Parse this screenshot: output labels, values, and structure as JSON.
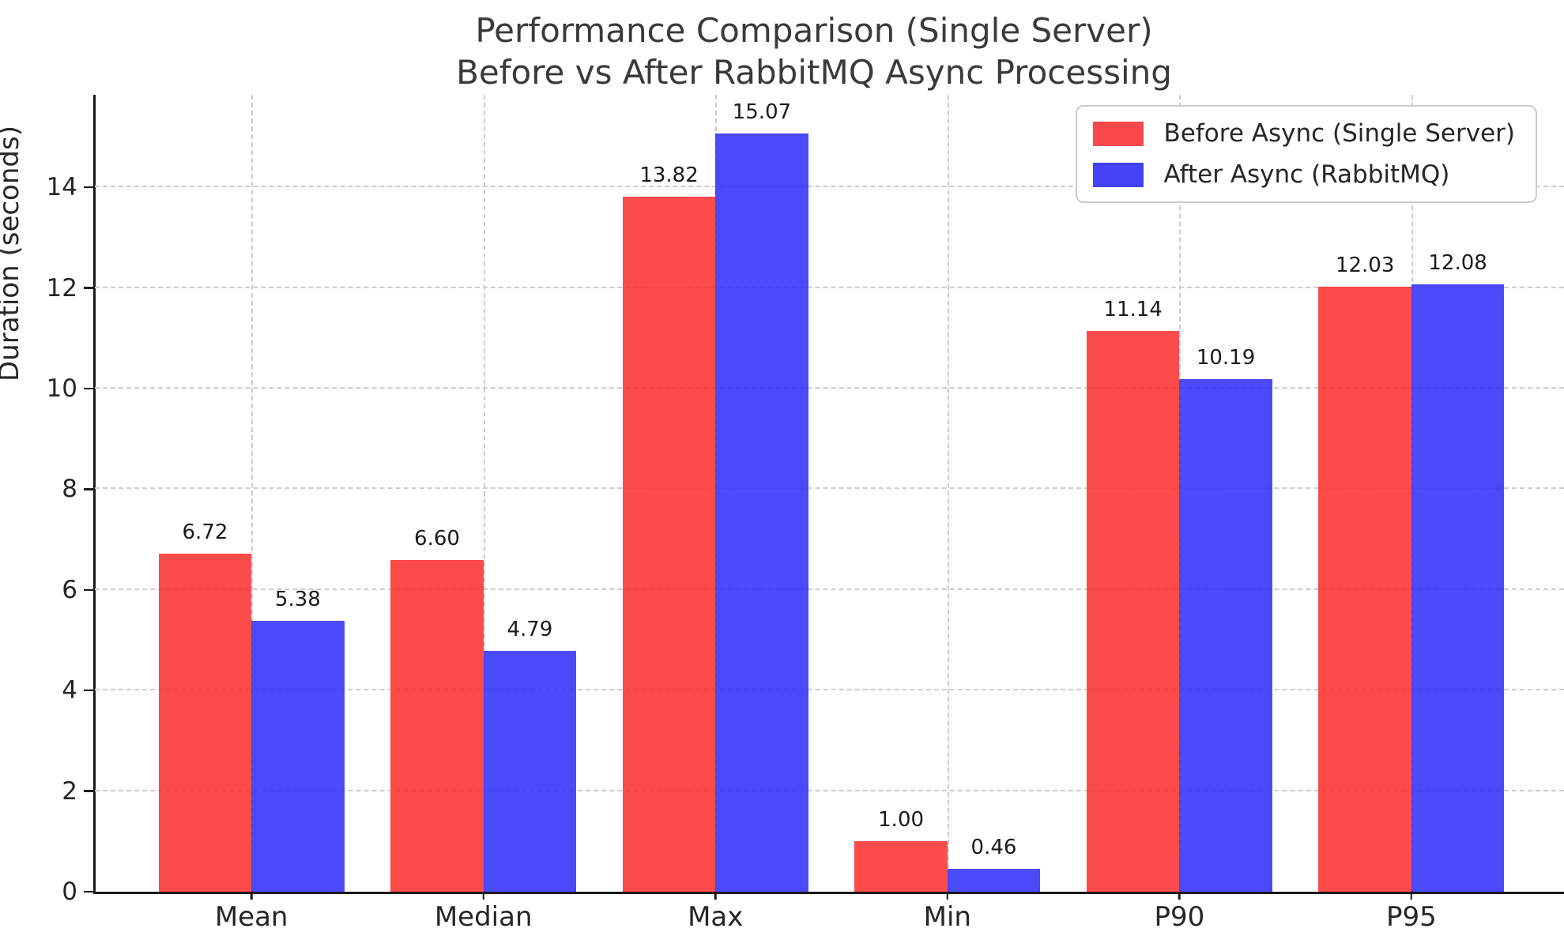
{
  "chart_data": {
    "type": "bar",
    "title_line1": "Performance Comparison (Single Server)",
    "title_line2": "Before vs After RabbitMQ Async Processing",
    "ylabel": "Duration (seconds)",
    "xlabel": "",
    "categories": [
      "Mean",
      "Median",
      "Max",
      "Min",
      "P90",
      "P95"
    ],
    "series": [
      {
        "name": "Before Async (Single Server)",
        "color": "rgba(250,43,43,0.85)",
        "legend_color": "#f8484c",
        "values": [
          6.72,
          6.6,
          13.82,
          1.0,
          11.14,
          12.03
        ]
      },
      {
        "name": "After Async (RabbitMQ)",
        "color": "rgba(43,43,250,0.85)",
        "legend_color": "#4343f5",
        "values": [
          5.38,
          4.79,
          15.07,
          0.46,
          10.19,
          12.08
        ]
      }
    ],
    "yticks": [
      0,
      2,
      4,
      6,
      8,
      10,
      12,
      14
    ],
    "ylim": [
      0,
      15.84
    ],
    "grid": "dashed-both-axes",
    "legend_position": "upper right",
    "value_label_decimals": 2
  }
}
